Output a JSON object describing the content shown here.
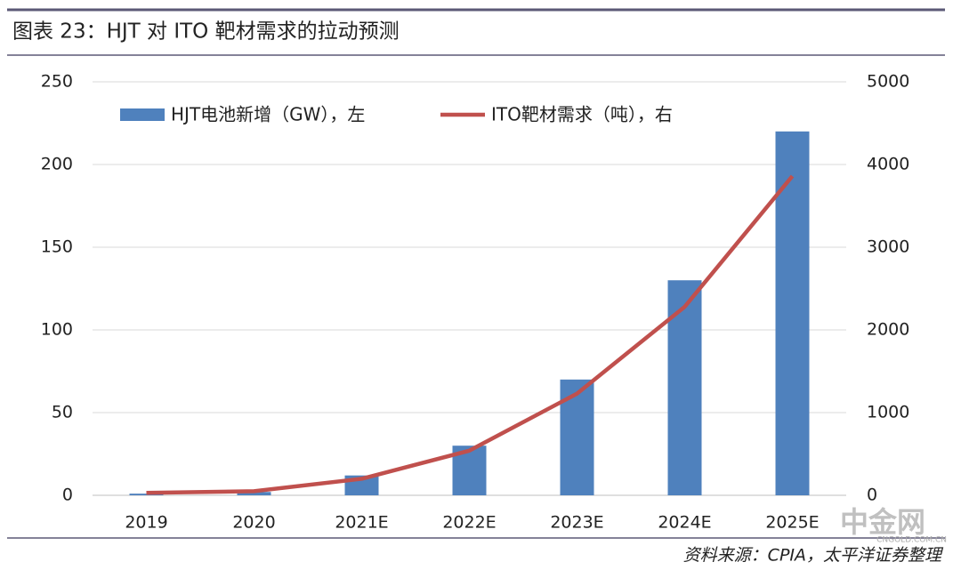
{
  "header": {
    "title": "图表 23：HJT 对 ITO 靶材需求的拉动预测"
  },
  "chart_data": {
    "type": "bar-line",
    "categories": [
      "2019",
      "2020",
      "2021E",
      "2022E",
      "2023E",
      "2024E",
      "2025E"
    ],
    "series": [
      {
        "name": "HJT电池新增（GW），左",
        "type": "bar",
        "color": "#4f81bd",
        "values": [
          1,
          2,
          12,
          30,
          70,
          130,
          220
        ]
      },
      {
        "name": "ITO靶材需求（吨），右",
        "type": "line",
        "axis": "y2",
        "color": "#c0504d",
        "values": [
          30,
          50,
          200,
          540,
          1230,
          2280,
          3860
        ]
      }
    ],
    "ylim": [
      0,
      250
    ],
    "yticks": [
      0,
      50,
      100,
      150,
      200,
      250
    ],
    "y2lim": [
      0,
      5000
    ],
    "y2ticks": [
      0,
      1000,
      2000,
      3000,
      4000,
      5000
    ],
    "grid": true,
    "legend": "top"
  },
  "footer": {
    "source": "资料来源：CPIA，太平洋证券整理",
    "watermark": "中金网",
    "watermark_url": "CNGOLD.COM.CN"
  }
}
